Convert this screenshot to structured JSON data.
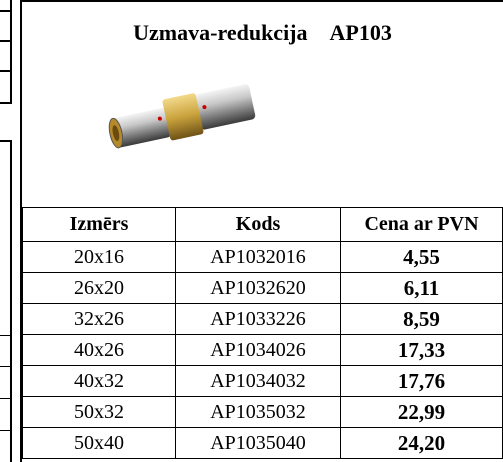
{
  "header": {
    "title": "Uzmava-redukcija",
    "code": "AP103"
  },
  "table": {
    "columns": [
      "Izmērs",
      "Kods",
      "Cena ar PVN"
    ],
    "rows": [
      [
        "20x16",
        "AP1032016",
        "4,55"
      ],
      [
        "26x20",
        "AP1032620",
        "6,11"
      ],
      [
        "32x26",
        "AP1033226",
        "8,59"
      ],
      [
        "40x26",
        "AP1034026",
        "17,33"
      ],
      [
        "40x32",
        "AP1034032",
        "17,76"
      ],
      [
        "50x32",
        "AP1035032",
        "22,99"
      ],
      [
        "50x40",
        "AP1035040",
        "24,20"
      ]
    ]
  }
}
